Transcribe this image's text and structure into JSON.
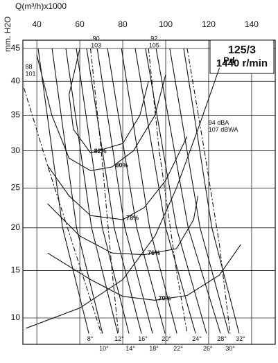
{
  "chart_data": {
    "type": "line",
    "title": "125/3",
    "subtitle": "1440 r/min",
    "x_label": "Q(m³/h)x1000",
    "y_label": "mm. H2O",
    "xlim": [
      33.5,
      151
    ],
    "xticks": [
      40,
      60,
      80,
      100,
      120,
      140
    ],
    "ylim": [
      7.5,
      46.3
    ],
    "yticks": [
      10,
      15,
      20,
      25,
      30,
      35,
      40,
      45
    ],
    "yscale": "power",
    "ypower": 0.7,
    "grid": true,
    "color": "#111111",
    "series": [
      {
        "labels": [
          "8°"
        ],
        "kind": "blade",
        "x": [
          40.6,
          52,
          64.2
        ],
        "values": [
          45,
          20,
          8.5
        ]
      },
      {
        "labels": [
          "10°"
        ],
        "kind": "blade",
        "x": [
          47.1,
          58.5,
          70.6
        ],
        "values": [
          45,
          20,
          8.5
        ]
      },
      {
        "labels": [
          "12°"
        ],
        "kind": "blade",
        "x": [
          53.5,
          65.5,
          77.7
        ],
        "values": [
          45,
          20,
          8.5
        ]
      },
      {
        "labels": [
          "14°"
        ],
        "kind": "blade",
        "x": [
          58.4,
          70.5,
          82.9
        ],
        "values": [
          45,
          20,
          8.5
        ]
      },
      {
        "labels": [
          "16°"
        ],
        "kind": "blade",
        "x": [
          63.2,
          76,
          88.7
        ],
        "values": [
          45,
          20,
          8.5
        ]
      },
      {
        "labels": [
          "18°"
        ],
        "kind": "blade",
        "x": [
          68.1,
          81,
          93.9
        ],
        "values": [
          45,
          20,
          8.5
        ]
      },
      {
        "labels": [
          "20°"
        ],
        "kind": "blade",
        "x": [
          72.9,
          86.5,
          99.7
        ],
        "values": [
          45,
          20,
          8.5
        ]
      },
      {
        "labels": [
          "22°"
        ],
        "kind": "blade",
        "x": [
          79.4,
          92.5,
          105.2
        ],
        "values": [
          45,
          20,
          8.5
        ]
      },
      {
        "labels": [
          "24°"
        ],
        "kind": "blade",
        "x": [
          85.8,
          100,
          113.9
        ],
        "values": [
          45,
          20,
          8.5
        ]
      },
      {
        "labels": [
          "26°"
        ],
        "kind": "blade",
        "x": [
          90.6,
          105,
          119
        ],
        "values": [
          45,
          20,
          8.5
        ]
      },
      {
        "labels": [
          "28°"
        ],
        "kind": "blade",
        "x": [
          95.5,
          110.5,
          125.5
        ],
        "values": [
          45,
          20,
          8.5
        ]
      },
      {
        "labels": [
          "30°"
        ],
        "kind": "blade",
        "x": [
          101.9,
          116,
          129.4
        ],
        "values": [
          45,
          20,
          8.5
        ]
      },
      {
        "labels": [
          "32°"
        ],
        "kind": "blade",
        "x": [
          108.4,
          121.5,
          134.2
        ],
        "values": [
          45,
          20,
          8.5
        ]
      },
      {
        "labels": [
          "82%"
        ],
        "kind": "efficiency",
        "x": [
          60,
          55,
          57,
          65,
          80,
          88,
          92
        ],
        "values": [
          45,
          38,
          33,
          29.7,
          31,
          35,
          40
        ]
      },
      {
        "labels": [
          "80%"
        ],
        "kind": "efficiency",
        "x": [
          40,
          47,
          55,
          65,
          75,
          85,
          95,
          100
        ],
        "values": [
          44,
          35,
          29,
          27.3,
          27.8,
          30,
          35,
          41
        ]
      },
      {
        "labels": [
          "78%"
        ],
        "kind": "efficiency",
        "x": [
          45,
          55,
          65,
          80,
          90,
          100,
          110
        ],
        "values": [
          28,
          24,
          21.5,
          21,
          22.5,
          26,
          32
        ]
      },
      {
        "labels": [
          "76%"
        ],
        "kind": "efficiency",
        "x": [
          45,
          60,
          75,
          90,
          105,
          113,
          115
        ],
        "values": [
          23,
          19,
          17,
          16.8,
          17.5,
          21,
          24
        ]
      },
      {
        "labels": [
          "70%"
        ],
        "kind": "efficiency",
        "x": [
          45,
          65,
          80,
          95,
          110,
          125,
          135
        ],
        "values": [
          17,
          14,
          12.2,
          11.8,
          12.3,
          14.5,
          18
        ]
      },
      {
        "labels": [
          "88",
          "101"
        ],
        "kind": "noise",
        "x": [
          34,
          45,
          70
        ],
        "values": [
          39,
          28,
          8.5
        ]
      },
      {
        "labels": [
          "90",
          "103"
        ],
        "kind": "noise",
        "x": [
          65,
          70,
          75,
          78
        ],
        "values": [
          45,
          30,
          15,
          8.5
        ]
      },
      {
        "labels": [
          "92",
          "105"
        ],
        "kind": "noise",
        "x": [
          92,
          97,
          105,
          110
        ],
        "values": [
          45,
          30,
          15,
          8.5
        ]
      },
      {
        "labels": [
          "94 dBA",
          "107 dBWA"
        ],
        "kind": "noise",
        "x": [
          110,
          118,
          125,
          130
        ],
        "values": [
          45,
          30,
          18,
          8.5
        ]
      },
      {
        "labels": [
          "Pd"
        ],
        "kind": "pressure",
        "x": [
          35,
          60,
          80,
          95,
          105,
          115,
          125
        ],
        "values": [
          9,
          11,
          14,
          19,
          25,
          33,
          42
        ]
      }
    ]
  }
}
